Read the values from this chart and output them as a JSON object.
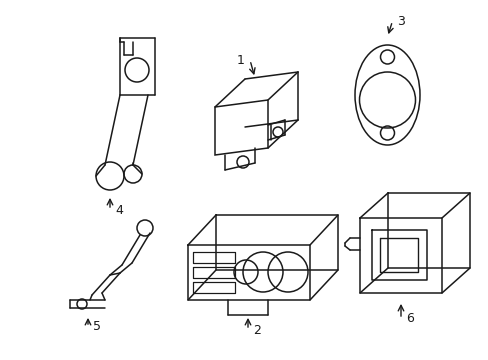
{
  "bg_color": "#ffffff",
  "line_color": "#1a1a1a",
  "line_width": 1.1,
  "fig_width": 4.89,
  "fig_height": 3.6,
  "dpi": 100
}
